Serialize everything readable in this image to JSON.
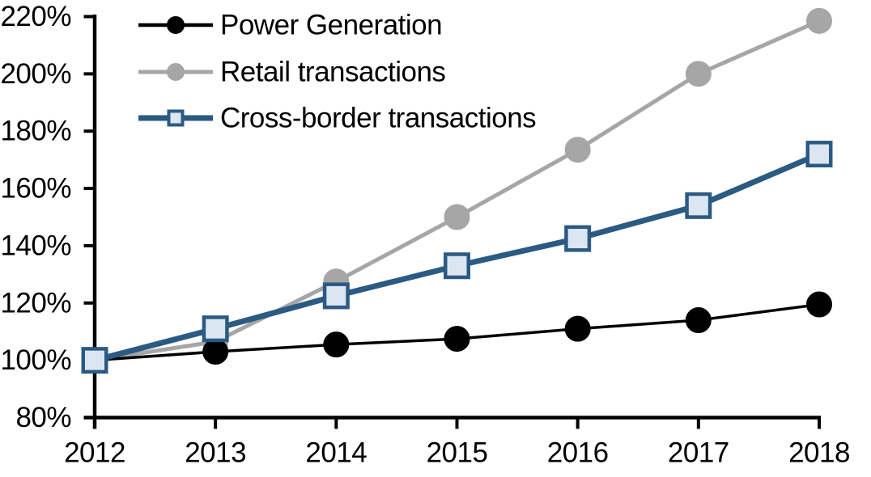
{
  "chart_data": {
    "type": "line",
    "title": "",
    "x_categories": [
      "2012",
      "2013",
      "2014",
      "2015",
      "2016",
      "2017",
      "2018"
    ],
    "series": [
      {
        "name": "Power Generation",
        "marker": "circle",
        "line_color": "#000000",
        "marker_fill": "#000000",
        "marker_stroke": "#000000",
        "values": [
          100,
          103,
          105.5,
          107.5,
          111,
          114,
          119.5
        ]
      },
      {
        "name": "Retail transactions",
        "marker": "circle",
        "line_color": "#a6a6a6",
        "marker_fill": "#a6a6a6",
        "marker_stroke": "#a6a6a6",
        "values": [
          100,
          106.5,
          127.5,
          150,
          173.5,
          200,
          218.5
        ]
      },
      {
        "name": "Cross-border transactions",
        "marker": "square",
        "line_color": "#2b5a83",
        "marker_fill": "#dce6f2",
        "marker_stroke": "#2b5a83",
        "values": [
          100,
          111,
          122.5,
          133,
          142.5,
          154,
          172
        ]
      }
    ],
    "y_axis": {
      "min": 80,
      "max": 220,
      "tick_step": 20,
      "tick_labels": [
        "220%",
        "200%",
        "180%",
        "160%",
        "140%",
        "120%",
        "100%",
        "80%"
      ],
      "format": "percent"
    },
    "x_axis": {
      "tick_labels": [
        "2012",
        "2013",
        "2014",
        "2015",
        "2016",
        "2017",
        "2018"
      ]
    },
    "legend": {
      "position": "top-left",
      "entries": [
        "Power Generation",
        "Retail transactions",
        "Cross-border transactions"
      ]
    },
    "grid": false,
    "axis_color": "#000000",
    "background_color": "#ffffff"
  }
}
